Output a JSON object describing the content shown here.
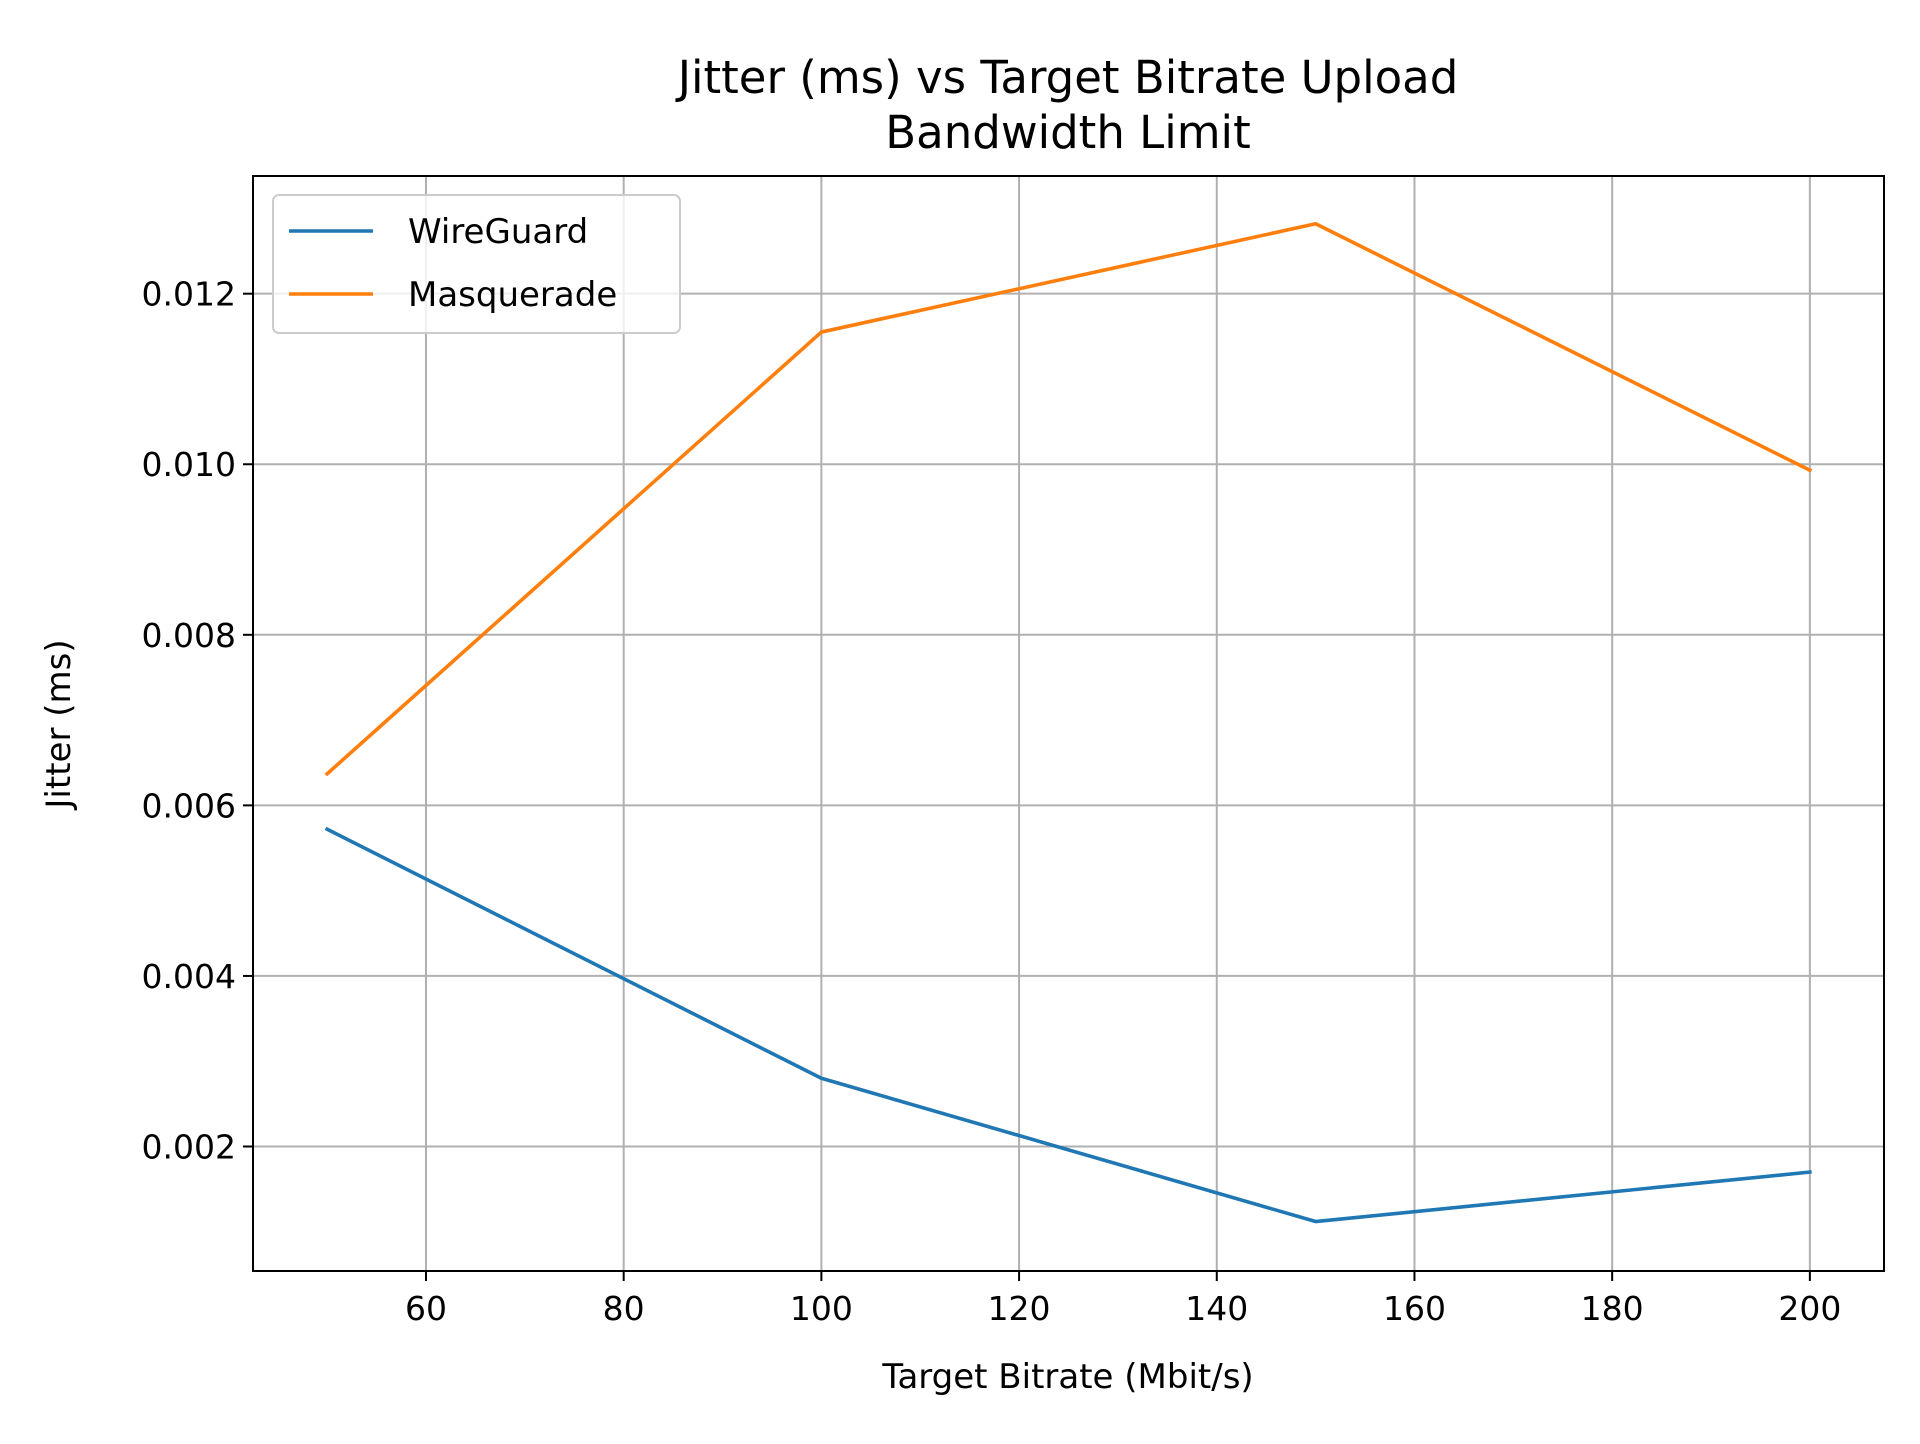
{
  "chart_data": {
    "type": "line",
    "title_lines": [
      "Jitter (ms) vs Target Bitrate Upload",
      "Bandwidth Limit"
    ],
    "xlabel": "Target Bitrate (Mbit/s)",
    "ylabel": "Jitter (ms)",
    "x": [
      50,
      100,
      150,
      200
    ],
    "xlim": [
      42.5,
      207.5
    ],
    "ylim": [
      0.00054,
      0.01338
    ],
    "xticks": [
      60,
      80,
      100,
      120,
      140,
      160,
      180,
      200
    ],
    "yticks": [
      0.002,
      0.004,
      0.006,
      0.008,
      0.01,
      0.012
    ],
    "xtick_labels": [
      "60",
      "80",
      "100",
      "120",
      "140",
      "160",
      "180",
      "200"
    ],
    "ytick_labels": [
      "0.002",
      "0.004",
      "0.006",
      "0.008",
      "0.010",
      "0.012"
    ],
    "grid": true,
    "legend_position": "upper-left",
    "series": [
      {
        "name": "WireGuard",
        "color": "#1f77b4",
        "values": [
          0.00572,
          0.0028,
          0.00112,
          0.0017
        ]
      },
      {
        "name": "Masquerade",
        "color": "#ff7f0e",
        "values": [
          0.00637,
          0.01155,
          0.01282,
          0.00993
        ]
      }
    ]
  }
}
